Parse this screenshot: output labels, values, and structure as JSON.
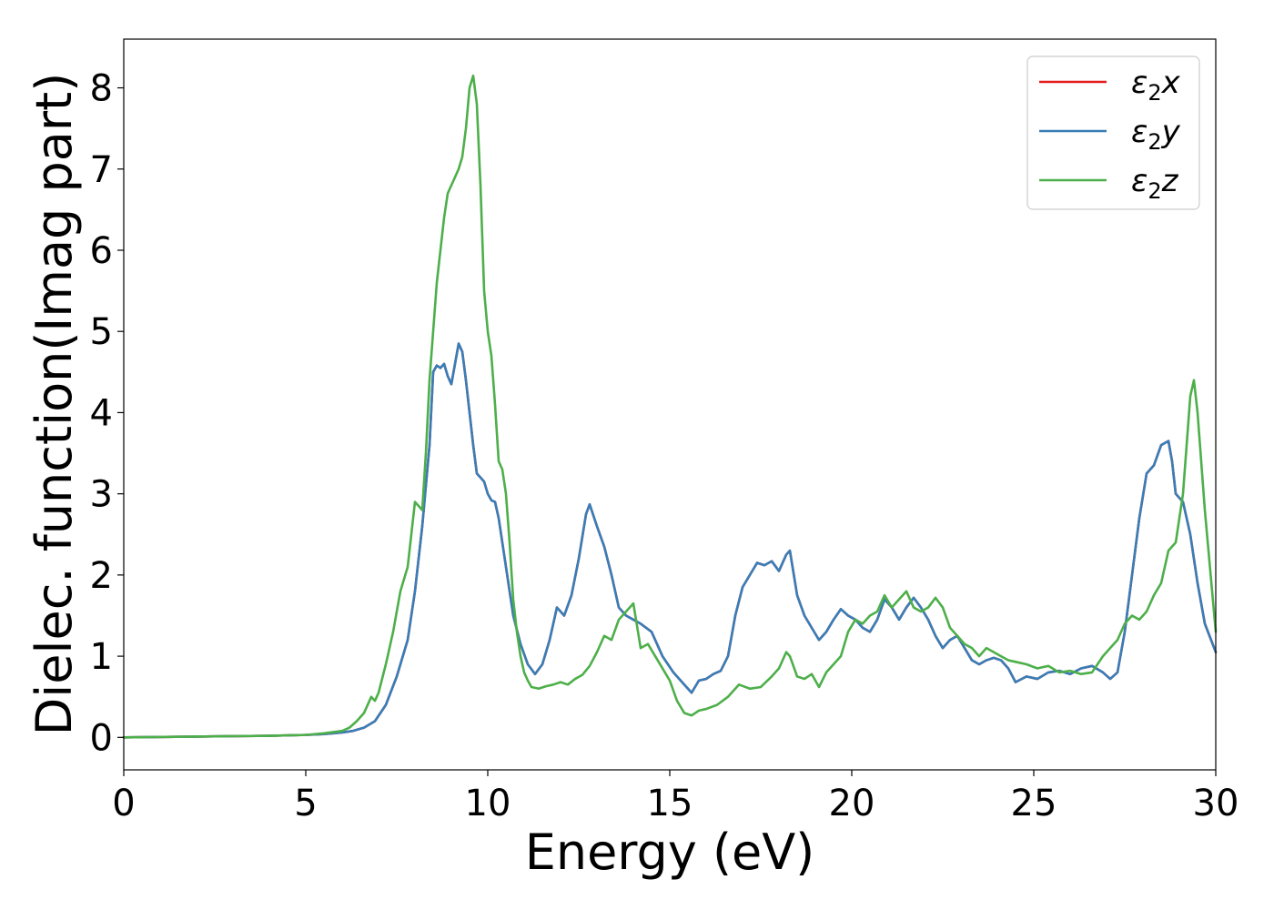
{
  "chart_data": {
    "type": "line",
    "title": "",
    "xlabel": "Energy (eV)",
    "ylabel": "Dielec. function(Imag part)",
    "xlim": [
      0,
      30
    ],
    "ylim": [
      -0.4,
      8.6
    ],
    "x_ticks": [
      "0",
      "5",
      "10",
      "15",
      "20",
      "25",
      "30"
    ],
    "y_ticks": [
      "0",
      "1",
      "2",
      "3",
      "4",
      "5",
      "6",
      "7",
      "8"
    ],
    "grid": false,
    "legend": {
      "placement": "top-right",
      "entries": [
        {
          "symbol": "ε",
          "sub": "2",
          "axis": "x",
          "color": "#e41a1c"
        },
        {
          "symbol": "ε",
          "sub": "2",
          "axis": "y",
          "color": "#377eb8"
        },
        {
          "symbol": "ε",
          "sub": "2",
          "axis": "z",
          "color": "#4daf4a"
        }
      ]
    },
    "series": [
      {
        "color": "#e41a1c",
        "x": [
          0,
          2,
          4,
          5,
          5.5,
          6,
          6.3,
          6.6,
          6.9,
          7.2,
          7.5,
          7.8,
          8.0,
          8.2,
          8.4,
          8.5,
          8.6,
          8.7,
          8.8,
          8.9,
          9.0,
          9.1,
          9.2,
          9.3,
          9.4,
          9.5,
          9.6,
          9.7,
          9.8,
          9.9,
          10.0,
          10.1,
          10.2,
          10.3,
          10.5,
          10.7,
          10.9,
          11.1,
          11.3,
          11.5,
          11.7,
          11.9,
          12.0,
          12.1,
          12.3,
          12.5,
          12.7,
          12.8,
          13.0,
          13.2,
          13.4,
          13.6,
          13.8,
          14.0,
          14.2,
          14.5,
          14.8,
          15.1,
          15.4,
          15.6,
          15.8,
          16.0,
          16.2,
          16.4,
          16.6,
          16.8,
          17.0,
          17.2,
          17.4,
          17.6,
          17.8,
          18.0,
          18.2,
          18.3,
          18.5,
          18.7,
          18.9,
          19.1,
          19.3,
          19.5,
          19.7,
          19.9,
          20.1,
          20.3,
          20.5,
          20.7,
          20.9,
          21.1,
          21.3,
          21.5,
          21.7,
          21.9,
          22.1,
          22.3,
          22.5,
          22.7,
          22.9,
          23.1,
          23.3,
          23.5,
          23.7,
          23.9,
          24.1,
          24.3,
          24.5,
          24.8,
          25.1,
          25.4,
          25.7,
          26.0,
          26.3,
          26.6,
          26.9,
          27.1,
          27.3,
          27.5,
          27.7,
          27.9,
          28.1,
          28.3,
          28.5,
          28.7,
          28.8,
          28.9,
          29.0,
          29.1,
          29.3,
          29.5,
          29.7,
          30.0
        ],
        "y": [
          0.0,
          0.01,
          0.02,
          0.03,
          0.04,
          0.06,
          0.08,
          0.12,
          0.2,
          0.4,
          0.75,
          1.2,
          1.8,
          2.6,
          3.6,
          4.5,
          4.58,
          4.55,
          4.6,
          4.45,
          4.35,
          4.6,
          4.85,
          4.75,
          4.4,
          4.0,
          3.6,
          3.25,
          3.2,
          3.15,
          3.0,
          2.92,
          2.9,
          2.7,
          2.1,
          1.5,
          1.15,
          0.9,
          0.78,
          0.9,
          1.2,
          1.6,
          1.55,
          1.5,
          1.75,
          2.2,
          2.75,
          2.87,
          2.6,
          2.35,
          2.0,
          1.6,
          1.5,
          1.45,
          1.4,
          1.3,
          1.0,
          0.8,
          0.65,
          0.55,
          0.7,
          0.72,
          0.78,
          0.82,
          1.0,
          1.5,
          1.85,
          2.0,
          2.15,
          2.12,
          2.17,
          2.05,
          2.25,
          2.3,
          1.75,
          1.5,
          1.35,
          1.2,
          1.3,
          1.45,
          1.58,
          1.5,
          1.45,
          1.35,
          1.3,
          1.45,
          1.7,
          1.6,
          1.45,
          1.6,
          1.72,
          1.6,
          1.45,
          1.25,
          1.1,
          1.2,
          1.25,
          1.1,
          0.95,
          0.9,
          0.95,
          0.98,
          0.95,
          0.85,
          0.68,
          0.75,
          0.72,
          0.8,
          0.82,
          0.78,
          0.85,
          0.88,
          0.8,
          0.72,
          0.8,
          1.3,
          2.0,
          2.7,
          3.25,
          3.35,
          3.6,
          3.65,
          3.4,
          3.0,
          2.95,
          2.9,
          2.5,
          1.9,
          1.4,
          1.05
        ]
      },
      {
        "color": "#377eb8",
        "x": [
          0,
          2,
          4,
          5,
          5.5,
          6,
          6.3,
          6.6,
          6.9,
          7.2,
          7.5,
          7.8,
          8.0,
          8.2,
          8.4,
          8.5,
          8.6,
          8.7,
          8.8,
          8.9,
          9.0,
          9.1,
          9.2,
          9.3,
          9.4,
          9.5,
          9.6,
          9.7,
          9.8,
          9.9,
          10.0,
          10.1,
          10.2,
          10.3,
          10.5,
          10.7,
          10.9,
          11.1,
          11.3,
          11.5,
          11.7,
          11.9,
          12.0,
          12.1,
          12.3,
          12.5,
          12.7,
          12.8,
          13.0,
          13.2,
          13.4,
          13.6,
          13.8,
          14.0,
          14.2,
          14.5,
          14.8,
          15.1,
          15.4,
          15.6,
          15.8,
          16.0,
          16.2,
          16.4,
          16.6,
          16.8,
          17.0,
          17.2,
          17.4,
          17.6,
          17.8,
          18.0,
          18.2,
          18.3,
          18.5,
          18.7,
          18.9,
          19.1,
          19.3,
          19.5,
          19.7,
          19.9,
          20.1,
          20.3,
          20.5,
          20.7,
          20.9,
          21.1,
          21.3,
          21.5,
          21.7,
          21.9,
          22.1,
          22.3,
          22.5,
          22.7,
          22.9,
          23.1,
          23.3,
          23.5,
          23.7,
          23.9,
          24.1,
          24.3,
          24.5,
          24.8,
          25.1,
          25.4,
          25.7,
          26.0,
          26.3,
          26.6,
          26.9,
          27.1,
          27.3,
          27.5,
          27.7,
          27.9,
          28.1,
          28.3,
          28.5,
          28.7,
          28.8,
          28.9,
          29.0,
          29.1,
          29.3,
          29.5,
          29.7,
          30.0
        ],
        "y": [
          0.0,
          0.01,
          0.02,
          0.03,
          0.04,
          0.06,
          0.08,
          0.12,
          0.2,
          0.4,
          0.75,
          1.2,
          1.8,
          2.6,
          3.6,
          4.5,
          4.58,
          4.55,
          4.6,
          4.45,
          4.35,
          4.6,
          4.85,
          4.75,
          4.4,
          4.0,
          3.6,
          3.25,
          3.2,
          3.15,
          3.0,
          2.92,
          2.9,
          2.7,
          2.1,
          1.5,
          1.15,
          0.9,
          0.78,
          0.9,
          1.2,
          1.6,
          1.55,
          1.5,
          1.75,
          2.2,
          2.75,
          2.87,
          2.6,
          2.35,
          2.0,
          1.6,
          1.5,
          1.45,
          1.4,
          1.3,
          1.0,
          0.8,
          0.65,
          0.55,
          0.7,
          0.72,
          0.78,
          0.82,
          1.0,
          1.5,
          1.85,
          2.0,
          2.15,
          2.12,
          2.17,
          2.05,
          2.25,
          2.3,
          1.75,
          1.5,
          1.35,
          1.2,
          1.3,
          1.45,
          1.58,
          1.5,
          1.45,
          1.35,
          1.3,
          1.45,
          1.7,
          1.6,
          1.45,
          1.6,
          1.72,
          1.6,
          1.45,
          1.25,
          1.1,
          1.2,
          1.25,
          1.1,
          0.95,
          0.9,
          0.95,
          0.98,
          0.95,
          0.85,
          0.68,
          0.75,
          0.72,
          0.8,
          0.82,
          0.78,
          0.85,
          0.88,
          0.8,
          0.72,
          0.8,
          1.3,
          2.0,
          2.7,
          3.25,
          3.35,
          3.6,
          3.65,
          3.4,
          3.0,
          2.95,
          2.9,
          2.5,
          1.9,
          1.4,
          1.05
        ]
      },
      {
        "color": "#4daf4a",
        "x": [
          0,
          2,
          4,
          5,
          5.5,
          6,
          6.2,
          6.4,
          6.6,
          6.8,
          6.9,
          7.0,
          7.2,
          7.4,
          7.6,
          7.8,
          8.0,
          8.1,
          8.2,
          8.3,
          8.4,
          8.5,
          8.6,
          8.7,
          8.8,
          8.9,
          9.0,
          9.1,
          9.2,
          9.3,
          9.4,
          9.5,
          9.6,
          9.7,
          9.8,
          9.9,
          10.0,
          10.1,
          10.2,
          10.3,
          10.4,
          10.5,
          10.6,
          10.7,
          10.8,
          10.9,
          11.0,
          11.1,
          11.2,
          11.4,
          11.6,
          11.8,
          12.0,
          12.2,
          12.4,
          12.6,
          12.8,
          13.0,
          13.2,
          13.4,
          13.6,
          13.8,
          14.0,
          14.2,
          14.4,
          14.6,
          14.8,
          15.0,
          15.2,
          15.4,
          15.6,
          15.8,
          16.0,
          16.3,
          16.6,
          16.9,
          17.2,
          17.5,
          17.8,
          18.0,
          18.2,
          18.3,
          18.5,
          18.7,
          18.9,
          19.1,
          19.3,
          19.5,
          19.7,
          19.9,
          20.1,
          20.3,
          20.5,
          20.7,
          20.9,
          21.1,
          21.3,
          21.5,
          21.7,
          21.9,
          22.1,
          22.3,
          22.5,
          22.7,
          22.9,
          23.1,
          23.3,
          23.5,
          23.7,
          23.9,
          24.1,
          24.3,
          24.5,
          24.8,
          25.1,
          25.4,
          25.7,
          26.0,
          26.3,
          26.6,
          26.9,
          27.1,
          27.3,
          27.5,
          27.7,
          27.9,
          28.1,
          28.3,
          28.5,
          28.7,
          28.9,
          29.1,
          29.2,
          29.3,
          29.4,
          29.5,
          29.6,
          29.7,
          29.8,
          29.9,
          30.0
        ],
        "y": [
          0.0,
          0.01,
          0.02,
          0.03,
          0.05,
          0.08,
          0.12,
          0.2,
          0.3,
          0.5,
          0.45,
          0.55,
          0.9,
          1.3,
          1.8,
          2.1,
          2.9,
          2.85,
          2.8,
          3.5,
          4.4,
          5.0,
          5.6,
          6.0,
          6.4,
          6.7,
          6.8,
          6.9,
          7.0,
          7.15,
          7.5,
          8.0,
          8.15,
          7.8,
          6.8,
          5.5,
          5.0,
          4.7,
          4.1,
          3.4,
          3.3,
          3.0,
          2.4,
          1.7,
          1.3,
          1.0,
          0.8,
          0.7,
          0.62,
          0.6,
          0.63,
          0.65,
          0.68,
          0.65,
          0.72,
          0.77,
          0.88,
          1.05,
          1.25,
          1.2,
          1.45,
          1.55,
          1.65,
          1.1,
          1.15,
          1.0,
          0.85,
          0.7,
          0.45,
          0.3,
          0.27,
          0.33,
          0.35,
          0.4,
          0.5,
          0.65,
          0.6,
          0.62,
          0.75,
          0.85,
          1.05,
          1.0,
          0.75,
          0.72,
          0.78,
          0.62,
          0.8,
          0.9,
          1.0,
          1.3,
          1.45,
          1.4,
          1.5,
          1.55,
          1.75,
          1.6,
          1.7,
          1.8,
          1.6,
          1.55,
          1.6,
          1.72,
          1.6,
          1.35,
          1.25,
          1.15,
          1.1,
          1.0,
          1.1,
          1.05,
          1.0,
          0.95,
          0.93,
          0.9,
          0.85,
          0.88,
          0.8,
          0.82,
          0.78,
          0.8,
          1.0,
          1.1,
          1.2,
          1.4,
          1.5,
          1.45,
          1.55,
          1.75,
          1.9,
          2.3,
          2.4,
          3.0,
          3.6,
          4.2,
          4.4,
          4.0,
          3.4,
          2.8,
          2.3,
          1.8,
          1.3
        ]
      }
    ]
  }
}
